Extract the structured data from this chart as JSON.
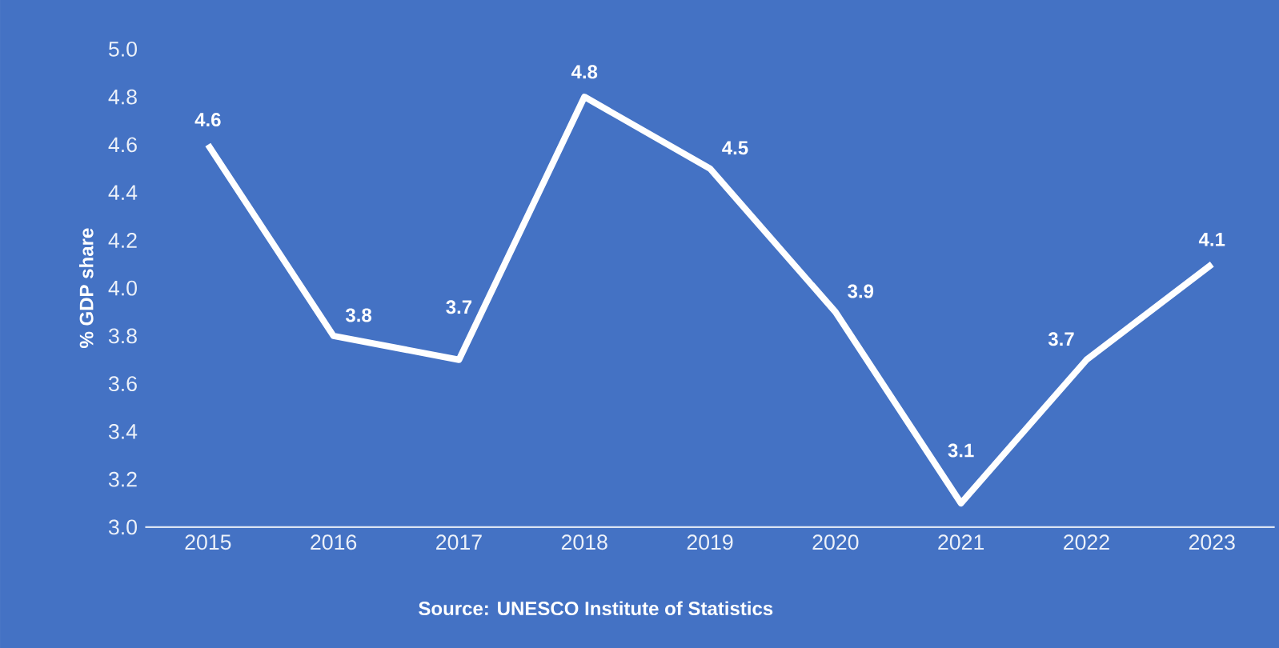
{
  "chart_data": {
    "type": "line",
    "ylabel": "% GDP share",
    "categories": [
      "2015",
      "2016",
      "2017",
      "2018",
      "2019",
      "2020",
      "2021",
      "2022",
      "2023"
    ],
    "values": [
      4.6,
      3.8,
      3.7,
      4.8,
      4.5,
      3.9,
      3.1,
      3.7,
      4.1
    ],
    "color": "#ffffff",
    "ylim": [
      3.0,
      5.0
    ],
    "yticks": [
      {
        "value": 3,
        "label": "3.0"
      },
      3.2,
      3.4,
      3.6,
      3.8,
      {
        "value": 4,
        "label": "4.0"
      },
      4.2,
      4.4,
      4.6,
      4.8,
      {
        "value": 5,
        "label": "5.0"
      }
    ],
    "grid": false,
    "marker": "none",
    "line_style": "solid",
    "data_labels": true,
    "annotations": [
      "Source: UNESCO Institute of Statistics"
    ]
  }
}
